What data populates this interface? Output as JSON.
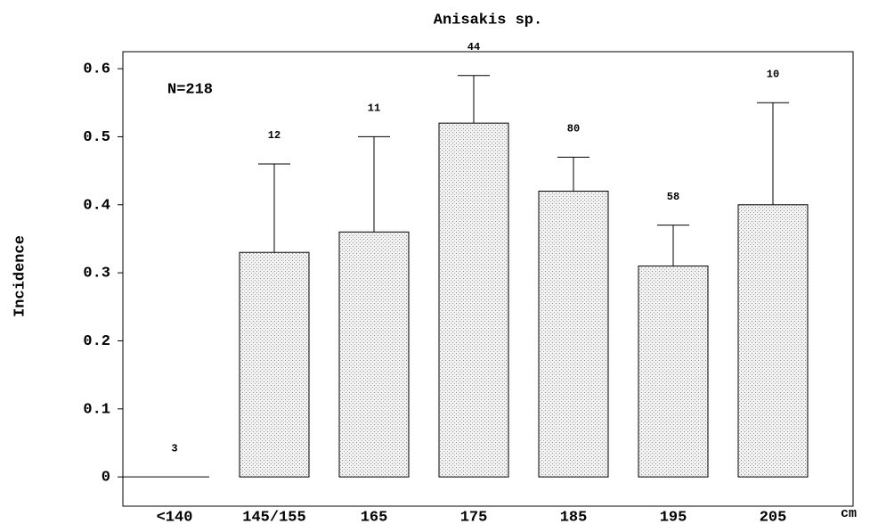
{
  "chart_data": {
    "type": "bar",
    "title": "Anisakis sp.",
    "y_label": "Incidence",
    "x_unit": "cm",
    "annotation": "N=218",
    "categories": [
      "<140",
      "145/155",
      "165",
      "175",
      "185",
      "195",
      "205"
    ],
    "values": [
      0,
      0.33,
      0.36,
      0.52,
      0.42,
      0.31,
      0.4
    ],
    "errors": [
      null,
      0.13,
      0.14,
      0.07,
      0.05,
      0.06,
      0.15
    ],
    "counts": [
      3,
      12,
      11,
      44,
      80,
      58,
      10
    ],
    "color": "#e4e4e4",
    "ylim": [
      -0.043,
      0.625
    ],
    "yticks": [
      0,
      0.1,
      0.2,
      0.3,
      0.4,
      0.5,
      0.6
    ],
    "grid": false
  }
}
